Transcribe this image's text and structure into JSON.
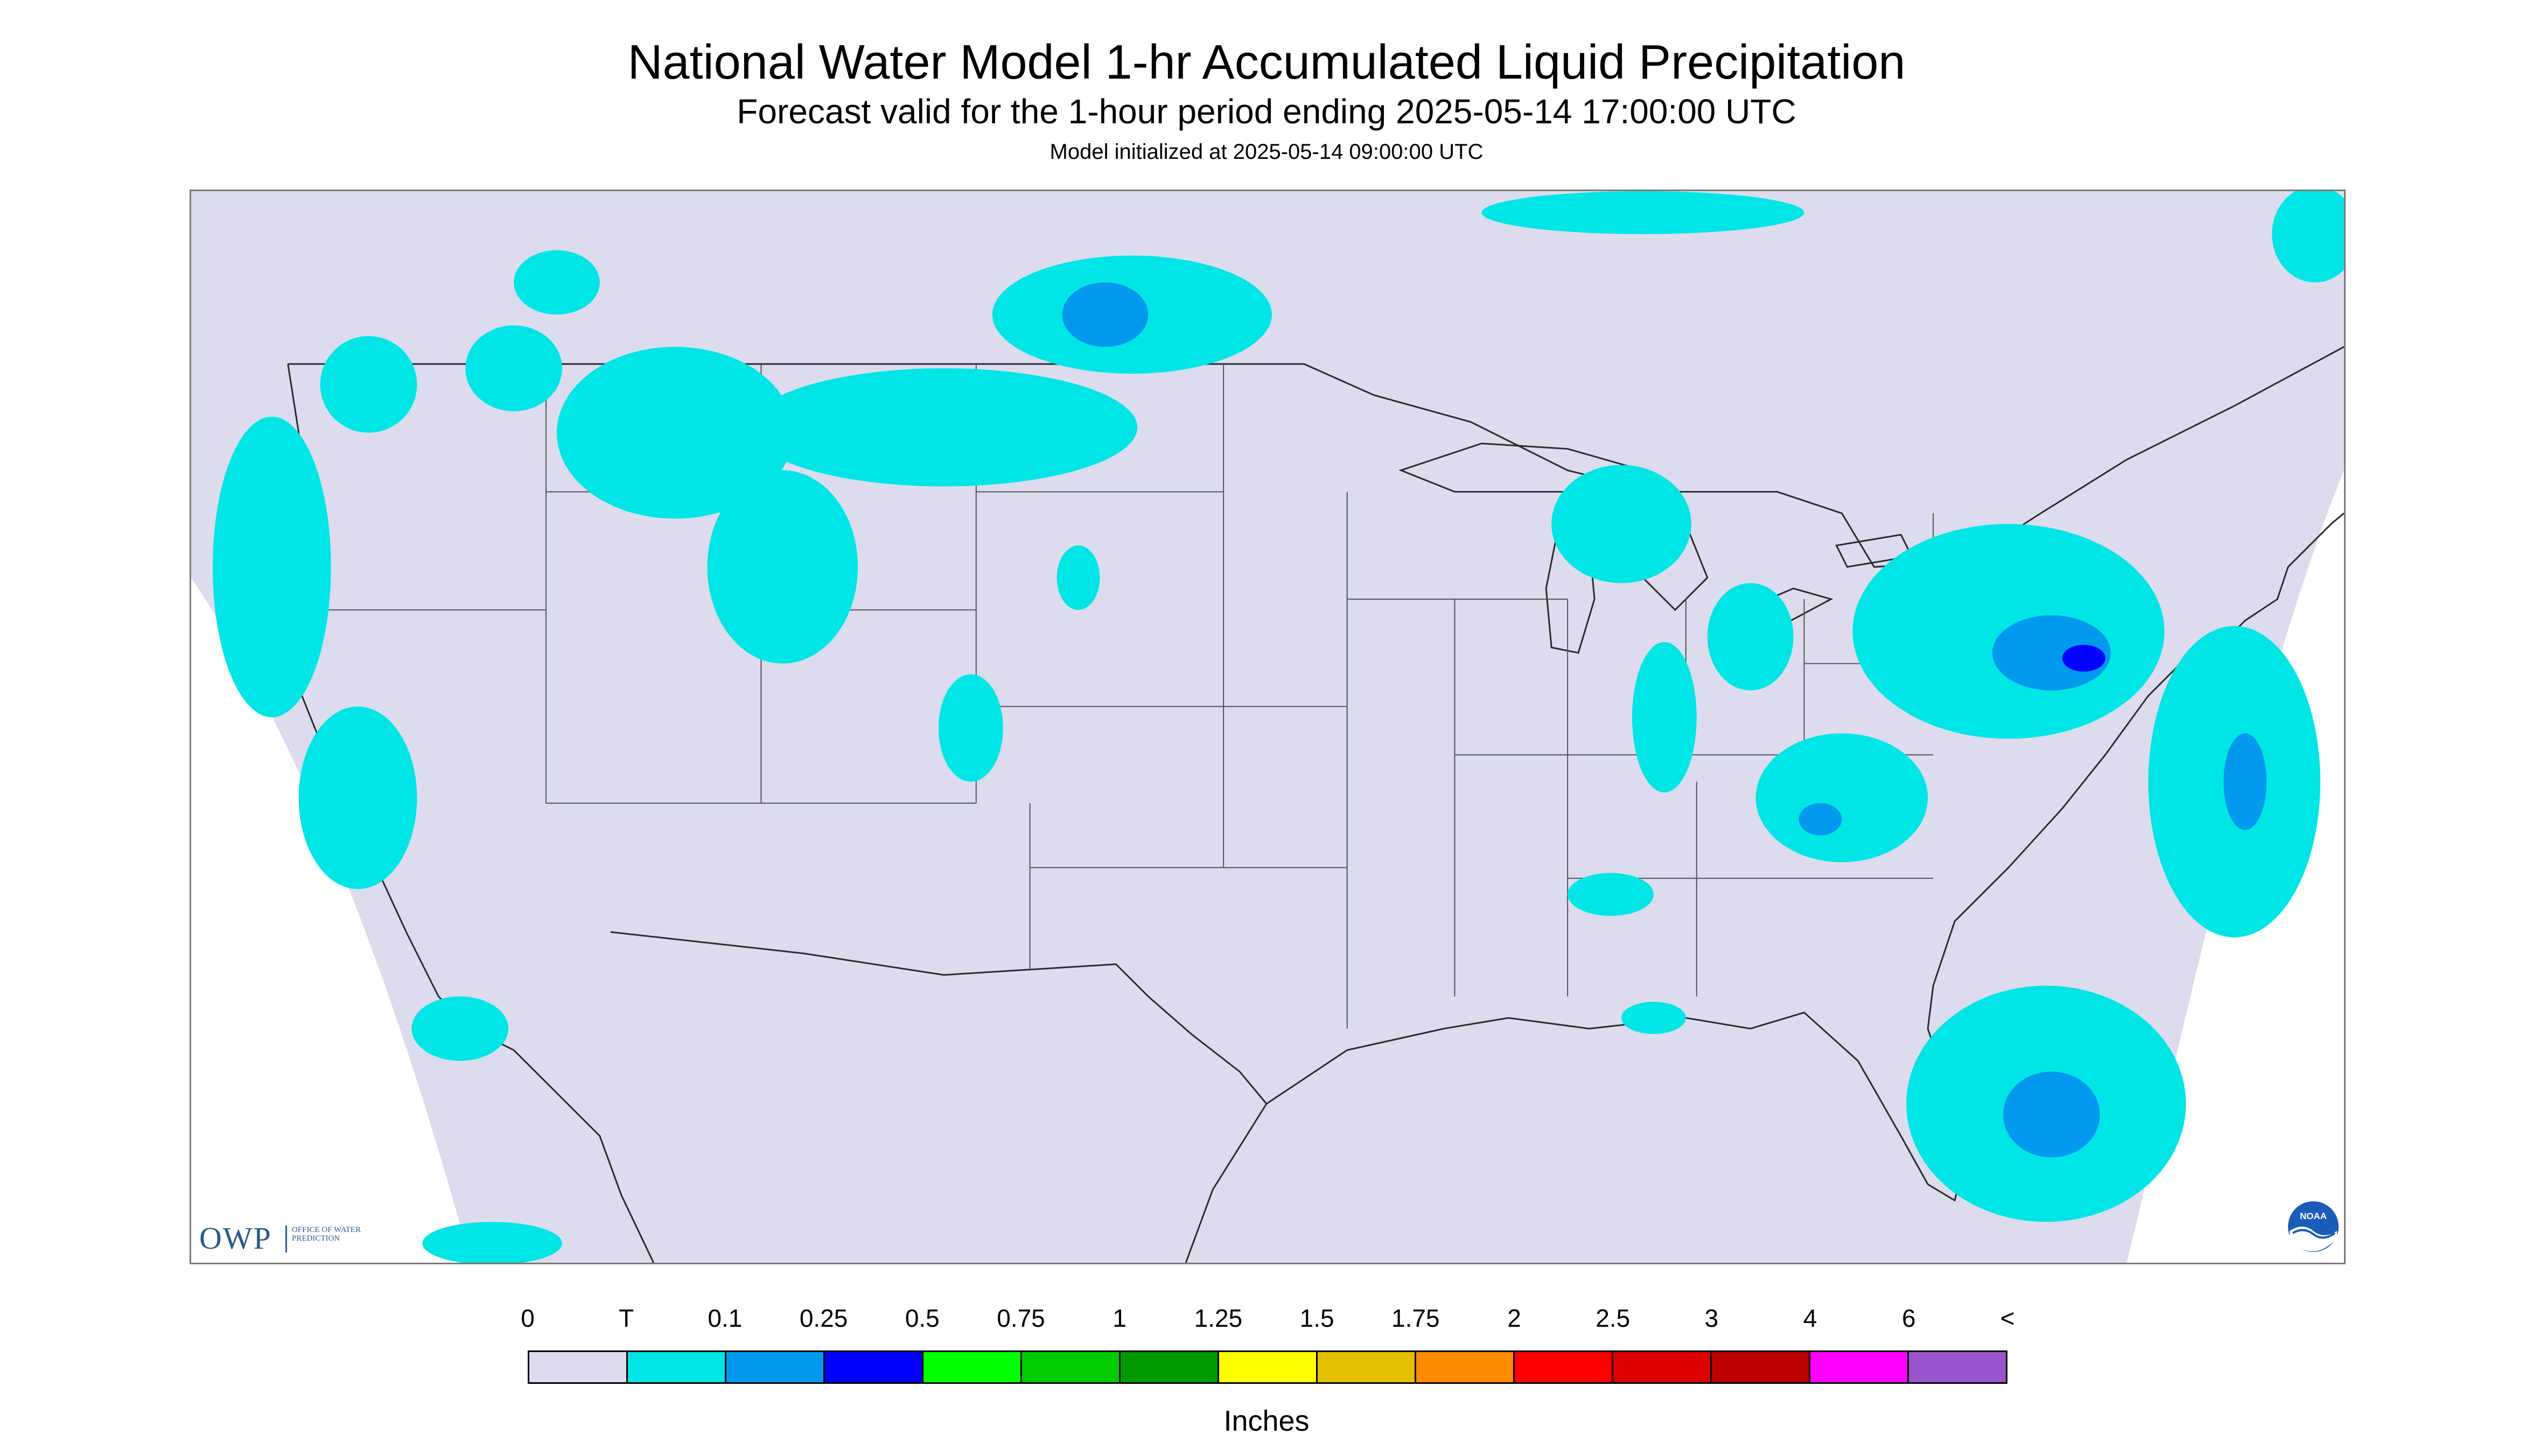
{
  "header": {
    "title": "National Water Model 1-hr Accumulated Liquid Precipitation",
    "subtitle": "Forecast valid for the 1-hour period ending 2025-05-14 17:00:00 UTC",
    "init": "Model initialized at 2025-05-14 09:00:00 UTC"
  },
  "logos": {
    "owp_letters": "OWP",
    "owp_tagline": "Office of Water Prediction",
    "noaa": "NOAA"
  },
  "map": {
    "background_color": "#dcdcee",
    "outside_color": "#ffffff",
    "border_color": "#2b2b2b",
    "precip_light_color": "#00e5e5",
    "precip_mid_color": "#0099ee",
    "precip_heavy_color": "#0000ff"
  },
  "legend": {
    "tick_labels": [
      "0",
      "T",
      "0.1",
      "0.25",
      "0.5",
      "0.75",
      "1",
      "1.25",
      "1.5",
      "1.75",
      "2",
      "2.5",
      "3",
      "4",
      "6",
      "<"
    ],
    "colors": [
      "#dcdcee",
      "#00e5e5",
      "#0099ee",
      "#0000ff",
      "#00ff00",
      "#00cc00",
      "#009900",
      "#ffff00",
      "#e6c000",
      "#ff8c00",
      "#ff0000",
      "#dd0000",
      "#bb0000",
      "#ff00ff",
      "#9955cc"
    ],
    "units": "Inches"
  }
}
